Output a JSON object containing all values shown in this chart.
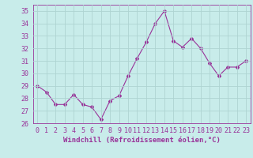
{
  "x": [
    0,
    1,
    2,
    3,
    4,
    5,
    6,
    7,
    8,
    9,
    10,
    11,
    12,
    13,
    14,
    15,
    16,
    17,
    18,
    19,
    20,
    21,
    22,
    23
  ],
  "y": [
    29,
    28.5,
    27.5,
    27.5,
    28.3,
    27.5,
    27.3,
    26.3,
    27.8,
    28.2,
    29.8,
    31.2,
    32.5,
    34.0,
    35.0,
    32.6,
    32.1,
    32.8,
    32.0,
    30.8,
    29.8,
    30.5,
    30.5,
    31.0
  ],
  "line_color": "#993399",
  "marker": "D",
  "marker_size": 2,
  "bg_color": "#c8ecea",
  "grid_color": "#aed4d2",
  "xlabel": "Windchill (Refroidissement éolien,°C)",
  "xlabel_color": "#993399",
  "tick_color": "#993399",
  "ylim": [
    26,
    35.5
  ],
  "xlim": [
    -0.5,
    23.5
  ],
  "yticks": [
    26,
    27,
    28,
    29,
    30,
    31,
    32,
    33,
    34,
    35
  ],
  "xticks": [
    0,
    1,
    2,
    3,
    4,
    5,
    6,
    7,
    8,
    9,
    10,
    11,
    12,
    13,
    14,
    15,
    16,
    17,
    18,
    19,
    20,
    21,
    22,
    23
  ],
  "tick_fontsize": 6,
  "xlabel_fontsize": 6.5
}
